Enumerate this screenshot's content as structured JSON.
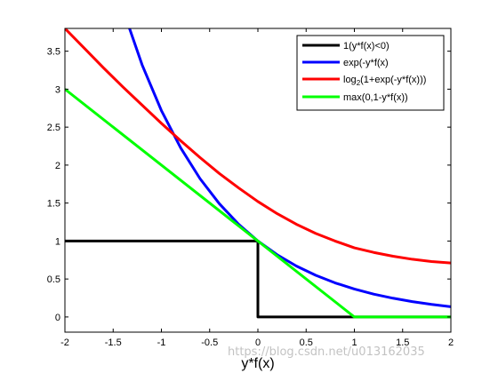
{
  "chart_data": {
    "type": "line",
    "xlabel": "y*f(x)",
    "ylabel": "",
    "xlim": [
      -2,
      2
    ],
    "ylim": [
      -0.2,
      3.8
    ],
    "xticks": [
      -2,
      -1.5,
      -1,
      -0.5,
      0,
      0.5,
      1,
      1.5,
      2
    ],
    "xtick_labels": [
      "-2",
      "-1.5",
      "-1",
      "-0.5",
      "0",
      "0.5",
      "1",
      "1.5",
      "2"
    ],
    "yticks": [
      0,
      0.5,
      1,
      1.5,
      2,
      2.5,
      3,
      3.5
    ],
    "ytick_labels": [
      "0",
      "0.5",
      "1",
      "1.5",
      "2",
      "2.5",
      "3",
      "3.5"
    ],
    "grid": false,
    "legend_position": "top-right",
    "series": [
      {
        "name": "1(y*f(x)<0)",
        "color": "#000000",
        "x": [
          -2,
          0,
          0,
          2
        ],
        "y": [
          1,
          1,
          0,
          0
        ]
      },
      {
        "name": "exp(-y*f(x)",
        "color": "#0000ff",
        "x": [
          -1.4,
          -1.2,
          -1.0,
          -0.8,
          -0.6,
          -0.4,
          -0.2,
          0,
          0.2,
          0.4,
          0.6,
          0.8,
          1.0,
          1.2,
          1.4,
          1.6,
          1.8,
          2.0
        ],
        "y": [
          4.055,
          3.32,
          2.718,
          2.226,
          1.822,
          1.492,
          1.221,
          1.0,
          0.819,
          0.67,
          0.549,
          0.449,
          0.368,
          0.301,
          0.247,
          0.202,
          0.165,
          0.135
        ]
      },
      {
        "name": "log2(1+exp(-y*f(x)))",
        "color": "#ff0000",
        "x": [
          -2.0,
          -1.8,
          -1.6,
          -1.4,
          -1.2,
          -1.0,
          -0.8,
          -0.6,
          -0.4,
          -0.2,
          0,
          0.2,
          0.4,
          0.6,
          0.8,
          1.0,
          1.2,
          1.4,
          1.6,
          1.8,
          2.0
        ],
        "y": [
          3.8,
          3.54,
          3.28,
          3.03,
          2.79,
          2.55,
          2.32,
          2.1,
          1.89,
          1.7,
          1.52,
          1.36,
          1.22,
          1.1,
          1.0,
          0.91,
          0.85,
          0.8,
          0.76,
          0.73,
          0.71
        ]
      },
      {
        "name": "max(0,1-y*f(x))",
        "color": "#00ff00",
        "x": [
          -2,
          1,
          2
        ],
        "y": [
          3,
          0,
          0
        ]
      }
    ]
  },
  "legend": {
    "items": [
      {
        "text": "1(y*f(x)<0)",
        "color": "#000000"
      },
      {
        "text": "exp(-y*f(x)",
        "color": "#0000ff"
      },
      {
        "text": "log",
        "sub": "2",
        "text_after": "(1+exp(-y*f(x)))",
        "color": "#ff0000"
      },
      {
        "text": "max(0,1-y*f(x))",
        "color": "#00ff00"
      }
    ]
  },
  "watermark": "https://blog.csdn.net/u013162035"
}
